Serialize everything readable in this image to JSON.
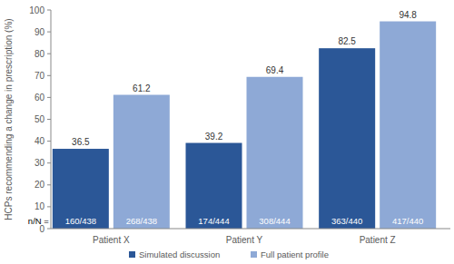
{
  "chart_data": {
    "type": "bar",
    "y_label": "HCPs recommending a change in prescription (%)",
    "categories": [
      "Patient X",
      "Patient Y",
      "Patient Z"
    ],
    "series": [
      {
        "name": "Simulated discussion",
        "color": "#2b5797",
        "values": [
          36.5,
          39.2,
          82.5
        ],
        "n_labels": [
          "160/438",
          "174/444",
          "363/440"
        ]
      },
      {
        "name": "Full patient profile",
        "color": "#8ea9d6",
        "values": [
          61.2,
          69.4,
          94.8
        ],
        "n_labels": [
          "268/438",
          "308/444",
          "417/440"
        ]
      }
    ],
    "n_label_prefix": "n/N =",
    "ylim": [
      0,
      100
    ],
    "yticks": [
      0,
      10,
      20,
      30,
      40,
      50,
      60,
      70,
      80,
      90,
      100
    ],
    "grid": false,
    "data_labels": true,
    "legend": "bottom"
  }
}
